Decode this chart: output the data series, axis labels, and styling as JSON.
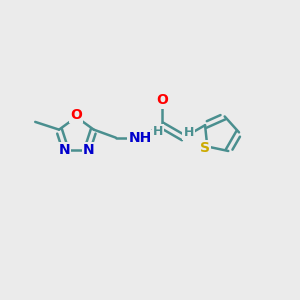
{
  "bg_color": "#ebebeb",
  "bond_color": "#4a8f8f",
  "bond_width": 1.8,
  "atom_colors": {
    "O": "#ff0000",
    "N": "#0000cc",
    "S": "#ccaa00",
    "C": "#4a8f8f",
    "H_label": "#4a8f8f"
  },
  "font_size": 10,
  "fig_size": [
    3.0,
    3.0
  ],
  "dpi": 100,
  "xlim": [
    0,
    10
  ],
  "ylim": [
    0,
    10
  ]
}
